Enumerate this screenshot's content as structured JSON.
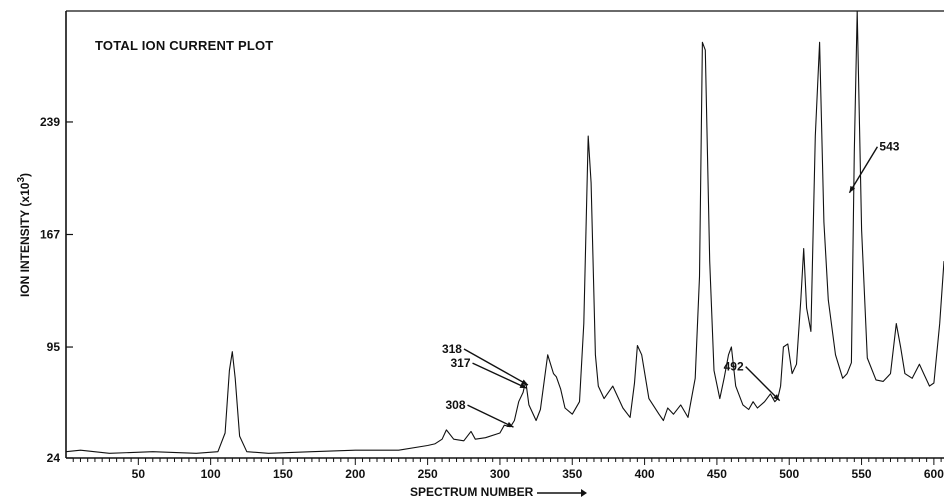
{
  "chart_data": {
    "type": "line",
    "title": "TOTAL ION CURRENT PLOT",
    "xlabel": "SPECTRUM NUMBER",
    "ylabel": "ION INTENSITY  (x10",
    "ylabel_sup": "3",
    "ylabel_end": ")",
    "x_ticks": [
      "50",
      "100",
      "150",
      "200",
      "250",
      "300",
      "350",
      "400",
      "450",
      "500",
      "550",
      "600"
    ],
    "x_tick_values": [
      50,
      100,
      150,
      200,
      250,
      300,
      350,
      400,
      450,
      500,
      550,
      600
    ],
    "y_ticks": [
      "24",
      "95",
      "167",
      "239"
    ],
    "y_tick_values": [
      24,
      95,
      167,
      239
    ],
    "xlim": [
      0,
      607
    ],
    "ylim": [
      24,
      310
    ],
    "grid": false,
    "series": [
      {
        "x": [
          0,
          10,
          30,
          60,
          90,
          105,
          110,
          113,
          115,
          117,
          120,
          125,
          140,
          170,
          200,
          230,
          250,
          255,
          260,
          263,
          268,
          275,
          280,
          283,
          290,
          300,
          303,
          307,
          308,
          310,
          313,
          316,
          317,
          318,
          320,
          325,
          328,
          333,
          337,
          339,
          342,
          345,
          350,
          355,
          358,
          361,
          363,
          366,
          368,
          372,
          378,
          385,
          390,
          393,
          395,
          398,
          403,
          410,
          413,
          416,
          420,
          425,
          430,
          435,
          438,
          440,
          442,
          445,
          448,
          452,
          455,
          458,
          460,
          463,
          468,
          472,
          475,
          478,
          483,
          487,
          490,
          492,
          494,
          496,
          499,
          502,
          505,
          508,
          510,
          512,
          515,
          518,
          521,
          524,
          527,
          532,
          537,
          540,
          543,
          545,
          547,
          550,
          554,
          560,
          565,
          570,
          574,
          577,
          580,
          585,
          590,
          593,
          597,
          600,
          604,
          607
        ],
        "y": [
          28,
          29,
          27,
          28,
          27,
          28,
          40,
          80,
          92,
          75,
          38,
          28,
          27,
          28,
          29,
          29,
          32,
          33,
          36,
          42,
          36,
          35,
          41,
          36,
          37,
          40,
          45,
          44,
          45,
          48,
          60,
          66,
          70,
          72,
          58,
          48,
          55,
          90,
          78,
          76,
          68,
          56,
          52,
          60,
          110,
          230,
          200,
          90,
          70,
          62,
          70,
          56,
          50,
          72,
          96,
          90,
          62,
          52,
          48,
          56,
          52,
          58,
          50,
          75,
          140,
          290,
          285,
          150,
          80,
          62,
          75,
          90,
          95,
          70,
          58,
          55,
          60,
          56,
          60,
          65,
          60,
          62,
          70,
          95,
          97,
          78,
          84,
          125,
          158,
          120,
          105,
          230,
          290,
          175,
          125,
          90,
          75,
          78,
          85,
          220,
          310,
          170,
          88,
          74,
          73,
          78,
          110,
          95,
          78,
          75,
          84,
          78,
          70,
          72,
          110,
          150
        ]
      }
    ],
    "annotations": [
      {
        "label": "318",
        "x": 318,
        "y": 72
      },
      {
        "label": "317",
        "x": 317,
        "y": 70
      },
      {
        "label": "308",
        "x": 308,
        "y": 45
      },
      {
        "label": "492",
        "x": 492,
        "y": 62
      },
      {
        "label": "543",
        "x": 543,
        "y": 195
      }
    ]
  }
}
